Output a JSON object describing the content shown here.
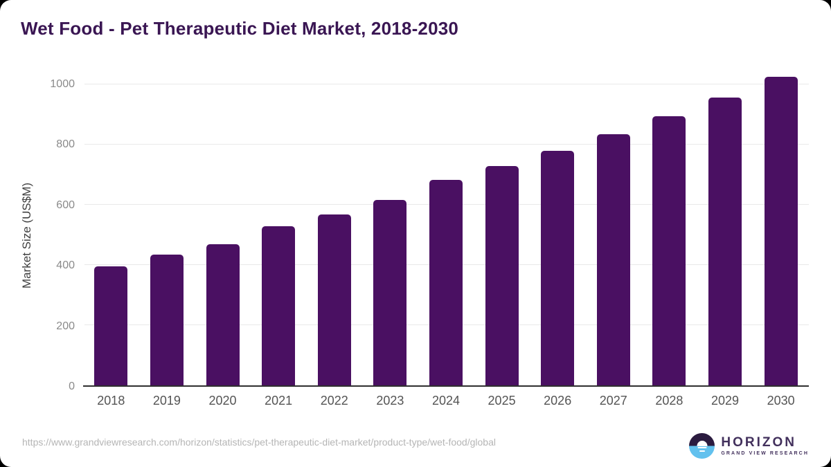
{
  "page": {
    "title": "Wet Food - Pet Therapeutic Diet Market, 2018-2030",
    "source_url": "https://www.grandviewresearch.com/horizon/statistics/pet-therapeutic-diet-market/product-type/wet-food/global",
    "logo": {
      "name": "HORIZON",
      "subtitle": "GRAND VIEW RESEARCH"
    }
  },
  "colors": {
    "bar": "#4a1062",
    "title": "#3a1653",
    "grid": "#e9e9e9",
    "axis": "#2f2f2f",
    "y_tick_label": "#8a8a8a",
    "x_tick_label": "#545454",
    "y_axis_title": "#3f3f3f",
    "source_url": "#b5b5b5",
    "logo_dark_half": "#2b1b3f",
    "logo_blue_half": "#62c1ee",
    "logo_text": "#42305c",
    "background": "#ffffff"
  },
  "chart_data": {
    "type": "bar",
    "title": "Wet Food - Pet Therapeutic Diet Market, 2018-2030",
    "xlabel": "",
    "ylabel": "Market Size (US$M)",
    "categories": [
      "2018",
      "2019",
      "2020",
      "2021",
      "2022",
      "2023",
      "2024",
      "2025",
      "2026",
      "2027",
      "2028",
      "2029",
      "2030"
    ],
    "values": [
      395,
      435,
      470,
      528,
      567,
      615,
      682,
      728,
      780,
      835,
      895,
      956,
      1025
    ],
    "ylim": [
      0,
      1000
    ],
    "yticks": [
      0,
      200,
      400,
      600,
      800,
      1000
    ],
    "grid": "horizontal",
    "legend": "none",
    "bar_color": "#4a1062"
  }
}
